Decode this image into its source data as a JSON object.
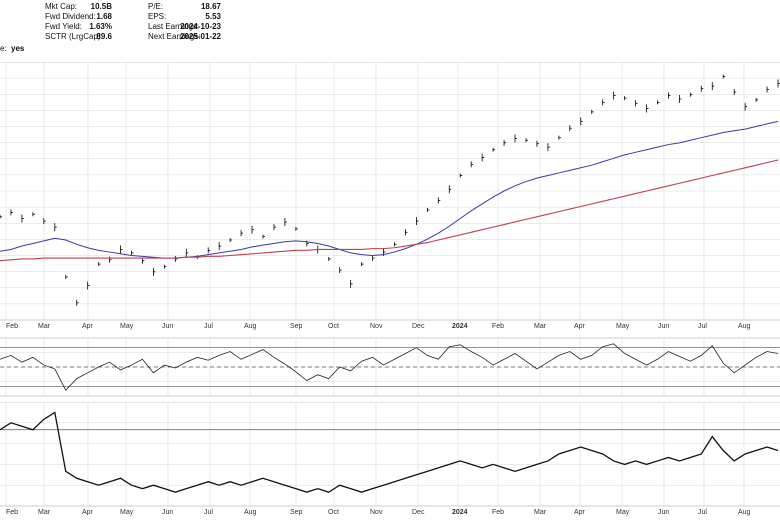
{
  "info": {
    "col1": [
      {
        "label": "Mkt Cap:",
        "value": "10.5B"
      },
      {
        "label": "Fwd Dividend:",
        "value": "1.68"
      },
      {
        "label": "Fwd Yield:",
        "value": "1.63%"
      },
      {
        "label": "SCTR (LrgCap):",
        "value": "89.6"
      }
    ],
    "col2": [
      {
        "label": "P/E:",
        "value": "18.67"
      },
      {
        "label": "EPS:",
        "value": "5.53"
      },
      {
        "label": "Last Earnings:",
        "value": "2024-10-23"
      },
      {
        "label": "Next Earnings:",
        "value": "2025-01-22"
      }
    ],
    "cut_label": "e:",
    "cut_value": "yes"
  },
  "colors": {
    "grid": "#d8d8d8",
    "price": "#000000",
    "ma_short": "#3a3aa0",
    "ma_long": "#c04050",
    "overbought_fill": "#3a8a3a",
    "oversold_fill": "#b03030"
  },
  "chart_data": [
    {
      "type": "line",
      "panel": "price",
      "x_tick_labels": [
        "Feb",
        "Mar",
        "Apr",
        "May",
        "Jun",
        "Jul",
        "Aug",
        "Sep",
        "Oct",
        "Nov",
        "Dec",
        "2024",
        "Feb",
        "Mar",
        "Apr",
        "May",
        "Jun",
        "Jul",
        "Aug"
      ],
      "series": [
        {
          "values": [
            62,
            62.5,
            61.8,
            62.3,
            61.5,
            60.8,
            55,
            52,
            54,
            56.5,
            57,
            58.2,
            57.8,
            56.9,
            55.6,
            56.2,
            57.1,
            57.8,
            57.3,
            58.1,
            58.6,
            59.3,
            60.1,
            60.5,
            59.7,
            60.8,
            61.4,
            60.6,
            58.9,
            58.2,
            57.1,
            55.8,
            54.2,
            56.5,
            57.2,
            57.9,
            58.8,
            60.2,
            61.5,
            62.8,
            63.9,
            65.2,
            66.8,
            68.1,
            68.9,
            69.8,
            70.6,
            71.1,
            70.9,
            70.5,
            70.1,
            71.2,
            72.3,
            73.1,
            74.2,
            75.3,
            76.1,
            75.8,
            75.2,
            74.6,
            75.3,
            76.1,
            75.7,
            76.2,
            76.9,
            77.2,
            78.3,
            76.5,
            74.8,
            75.6,
            76.8,
            77.5
          ]
        },
        {
          "values": [
            58,
            58.2,
            58.6,
            58.9,
            59.2,
            59.5,
            59.3,
            58.8,
            58.4,
            58.1,
            57.9,
            57.7,
            57.5,
            57.4,
            57.3,
            57.2,
            57.2,
            57.3,
            57.4,
            57.6,
            57.8,
            58.0,
            58.2,
            58.5,
            58.7,
            58.9,
            59.1,
            59.2,
            59.1,
            58.9,
            58.6,
            58.2,
            57.8,
            57.6,
            57.5,
            57.6,
            57.9,
            58.3,
            58.8,
            59.4,
            60.1,
            60.9,
            61.8,
            62.7,
            63.5,
            64.3,
            65.0,
            65.6,
            66.1,
            66.5,
            66.8,
            67.1,
            67.4,
            67.7,
            68.0,
            68.4,
            68.8,
            69.2,
            69.5,
            69.8,
            70.1,
            70.4,
            70.6,
            70.9,
            71.2,
            71.5,
            71.8,
            72.0,
            72.2,
            72.5,
            72.8,
            73.1
          ]
        },
        {
          "values": [
            56.9,
            57.0,
            57.1,
            57.1,
            57.2,
            57.2,
            57.2,
            57.2,
            57.2,
            57.2,
            57.2,
            57.2,
            57.2,
            57.2,
            57.2,
            57.2,
            57.2,
            57.3,
            57.3,
            57.4,
            57.4,
            57.5,
            57.6,
            57.7,
            57.8,
            57.9,
            58.0,
            58.1,
            58.1,
            58.2,
            58.2,
            58.2,
            58.2,
            58.2,
            58.3,
            58.3,
            58.4,
            58.6,
            58.8,
            59.0,
            59.3,
            59.6,
            59.9,
            60.2,
            60.5,
            60.8,
            61.1,
            61.4,
            61.7,
            62.0,
            62.3,
            62.6,
            62.9,
            63.2,
            63.5,
            63.8,
            64.1,
            64.4,
            64.7,
            65.0,
            65.3,
            65.6,
            65.9,
            66.2,
            66.5,
            66.8,
            67.1,
            67.4,
            67.7,
            68.0,
            68.3,
            68.6
          ]
        }
      ],
      "ylim": [
        50,
        80
      ],
      "grid": true
    },
    {
      "type": "line",
      "panel": "oscillator",
      "x_tick_labels": [
        "Feb",
        "Mar",
        "Apr",
        "May",
        "Jun",
        "Jul",
        "Aug",
        "Sep",
        "Oct",
        "Nov",
        "Dec",
        "2024",
        "Feb",
        "Mar",
        "Apr",
        "May",
        "Jun",
        "Jul",
        "Aug"
      ],
      "series": [
        {
          "values": [
            58,
            62,
            55,
            60,
            52,
            48,
            26,
            38,
            44,
            50,
            55,
            47,
            52,
            58,
            44,
            52,
            49,
            55,
            60,
            57,
            62,
            66,
            58,
            63,
            68,
            60,
            53,
            45,
            36,
            42,
            38,
            50,
            46,
            56,
            60,
            52,
            58,
            64,
            70,
            62,
            58,
            71,
            73,
            66,
            60,
            52,
            58,
            64,
            56,
            48,
            55,
            62,
            66,
            58,
            62,
            71,
            74,
            64,
            58,
            52,
            58,
            66,
            61,
            56,
            62,
            72,
            54,
            44,
            52,
            60,
            66,
            64
          ]
        }
      ],
      "reference_lines": [
        70,
        50,
        30
      ],
      "ylim": [
        20,
        80
      ],
      "grid": true
    },
    {
      "type": "line",
      "panel": "relative",
      "x_tick_labels": [
        "Feb",
        "Mar",
        "Apr",
        "May",
        "Jun",
        "Jul",
        "Aug",
        "Sep",
        "Oct",
        "Nov",
        "Dec",
        "2024",
        "Feb",
        "Mar",
        "Apr",
        "May",
        "Jun",
        "Jul",
        "Aug"
      ],
      "series": [
        {
          "values": [
            1.12,
            1.14,
            1.13,
            1.12,
            1.15,
            1.17,
            1.0,
            0.98,
            0.97,
            0.96,
            0.97,
            0.98,
            0.96,
            0.95,
            0.96,
            0.95,
            0.94,
            0.95,
            0.96,
            0.97,
            0.96,
            0.97,
            0.96,
            0.97,
            0.98,
            0.97,
            0.96,
            0.95,
            0.94,
            0.95,
            0.94,
            0.96,
            0.95,
            0.94,
            0.95,
            0.96,
            0.97,
            0.98,
            0.99,
            1.0,
            1.01,
            1.02,
            1.03,
            1.02,
            1.01,
            1.02,
            1.01,
            1.0,
            1.01,
            1.02,
            1.03,
            1.05,
            1.06,
            1.07,
            1.06,
            1.05,
            1.03,
            1.02,
            1.03,
            1.02,
            1.03,
            1.04,
            1.03,
            1.04,
            1.05,
            1.1,
            1.06,
            1.03,
            1.05,
            1.06,
            1.07,
            1.06
          ]
        }
      ],
      "reference_lines": [
        1.12
      ],
      "ylim": [
        0.9,
        1.2
      ],
      "grid": true
    }
  ]
}
